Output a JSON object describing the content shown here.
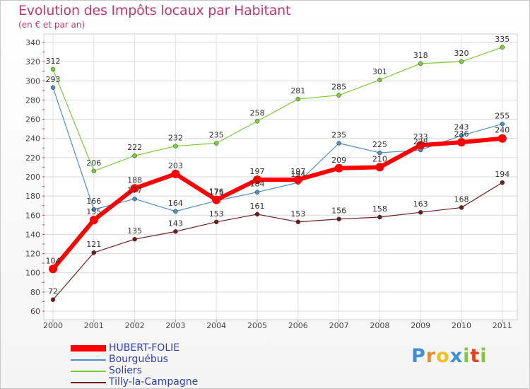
{
  "header": {
    "title": "Evolution des Impôts locaux par Habitant",
    "subtitle": "(en € et par an)"
  },
  "chart_data": {
    "type": "line",
    "title": "Evolution des Impôts locaux par Habitant",
    "subtitle": "(en € et par an)",
    "xlabel": "",
    "ylabel": "",
    "categories": [
      "2000",
      "2001",
      "2002",
      "2003",
      "2004",
      "2005",
      "2006",
      "2007",
      "2008",
      "2009",
      "2010",
      "2011"
    ],
    "ylim": [
      60,
      340
    ],
    "yticks": [
      60,
      80,
      100,
      120,
      140,
      160,
      180,
      200,
      220,
      240,
      260,
      280,
      300,
      320,
      340
    ],
    "grid": true,
    "legend_position": "bottom-left",
    "series": [
      {
        "name": "Tilly-la-Campagne",
        "color": "#6b1f1f",
        "values": [
          72,
          121,
          135,
          143,
          153,
          161,
          153,
          156,
          158,
          163,
          168,
          194
        ]
      },
      {
        "name": "Soliers",
        "color": "#7ccc3a",
        "values": [
          312,
          206,
          222,
          232,
          235,
          258,
          281,
          285,
          301,
          318,
          320,
          335
        ]
      },
      {
        "name": "Bourguébus",
        "color": "#4b8ecb",
        "values": [
          293,
          166,
          177,
          164,
          175,
          184,
          194,
          235,
          225,
          228,
          243,
          255
        ]
      },
      {
        "name": "HUBERT-FOLIE",
        "color": "#ff0000",
        "values": [
          104,
          155,
          188,
          203,
          176,
          197,
          197,
          209,
          210,
          233,
          236,
          240
        ]
      }
    ],
    "legend_order": [
      "HUBERT-FOLIE",
      "Bourguébus",
      "Soliers",
      "Tilly-la-Campagne"
    ]
  },
  "logo": {
    "letters": [
      "P",
      "r",
      "o",
      "x",
      "i",
      "t",
      "i"
    ],
    "colors": [
      "#3d8fd8",
      "#f08a1c",
      "#f0c21c",
      "#3d8fd8",
      "#7ccc3a",
      "#e8401c",
      "#7ccc3a"
    ]
  }
}
